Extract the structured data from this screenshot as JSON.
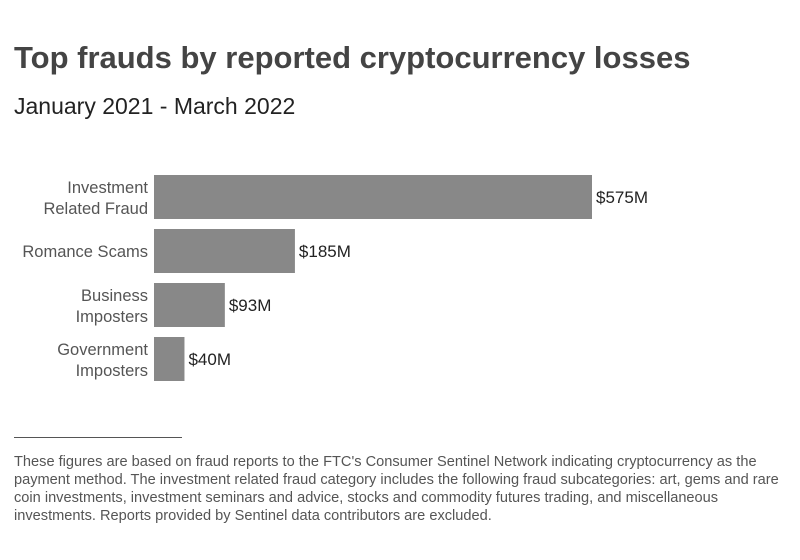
{
  "chart_data": {
    "type": "bar",
    "orientation": "horizontal",
    "title": "Top frauds by reported cryptocurrency losses",
    "subtitle": "January 2021 - March 2022",
    "categories": [
      [
        "Investment",
        "Related Fraud"
      ],
      [
        "Romance Scams"
      ],
      [
        "Business",
        "Imposters"
      ],
      [
        "Government",
        "Imposters"
      ]
    ],
    "values": [
      575,
      185,
      93,
      40
    ],
    "data_labels": [
      "$575M",
      "$185M",
      "$93M",
      "$40M"
    ],
    "unit": "$M",
    "bar_color": "#888888",
    "grid": false,
    "xlim": [
      0,
      575
    ]
  },
  "footnote": "These figures are based on fraud reports to the FTC's Consumer Sentinel Network indicating cryptocurrency as the payment method. The investment related fraud category includes the following fraud subcategories: art, gems and rare coin investments, investment seminars and advice, stocks and commodity futures trading, and miscellaneous investments. Reports provided by Sentinel data contributors are excluded."
}
